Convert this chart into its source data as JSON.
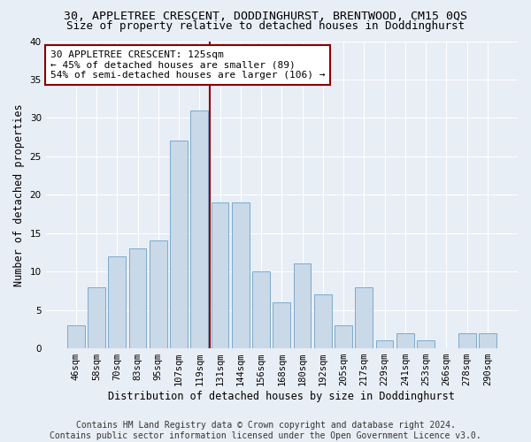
{
  "title": "30, APPLETREE CRESCENT, DODDINGHURST, BRENTWOOD, CM15 0QS",
  "subtitle": "Size of property relative to detached houses in Doddinghurst",
  "xlabel": "Distribution of detached houses by size in Doddinghurst",
  "ylabel": "Number of detached properties",
  "footer_line1": "Contains HM Land Registry data © Crown copyright and database right 2024.",
  "footer_line2": "Contains public sector information licensed under the Open Government Licence v3.0.",
  "categories": [
    "46sqm",
    "58sqm",
    "70sqm",
    "83sqm",
    "95sqm",
    "107sqm",
    "119sqm",
    "131sqm",
    "144sqm",
    "156sqm",
    "168sqm",
    "180sqm",
    "192sqm",
    "205sqm",
    "217sqm",
    "229sqm",
    "241sqm",
    "253sqm",
    "266sqm",
    "278sqm",
    "290sqm"
  ],
  "values": [
    3,
    8,
    12,
    13,
    14,
    27,
    31,
    19,
    19,
    10,
    6,
    11,
    7,
    3,
    8,
    1,
    2,
    1,
    0,
    2,
    2
  ],
  "bar_color": "#c9d9e8",
  "bar_edge_color": "#7baacf",
  "vline_x": 6.5,
  "vline_color": "#8b0000",
  "annotation_text": "30 APPLETREE CRESCENT: 125sqm\n← 45% of detached houses are smaller (89)\n54% of semi-detached houses are larger (106) →",
  "annotation_box_color": "#ffffff",
  "annotation_box_edge_color": "#8b0000",
  "ylim": [
    0,
    40
  ],
  "yticks": [
    0,
    5,
    10,
    15,
    20,
    25,
    30,
    35,
    40
  ],
  "background_color": "#e8eef5",
  "plot_background_color": "#e8eef5",
  "grid_color": "#ffffff",
  "title_fontsize": 9.5,
  "subtitle_fontsize": 9,
  "axis_label_fontsize": 8.5,
  "tick_fontsize": 7.5,
  "annotation_fontsize": 8,
  "footer_fontsize": 7
}
